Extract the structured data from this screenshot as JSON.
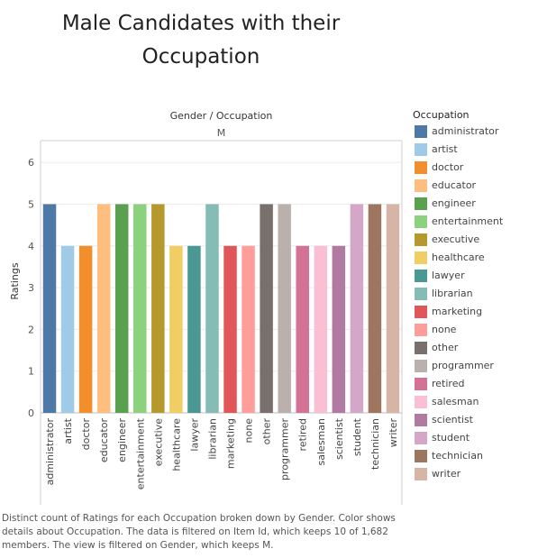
{
  "title_line1": "Male Candidates with their",
  "title_line2": "Occupation",
  "caption": "Distinct count of Ratings for each Occupation broken down by Gender.  Color shows details about Occupation. The data is filtered on Item Id, which keeps 10 of 1,682 members. The view is filtered on Gender, which keeps M.",
  "legend_title": "Occupation",
  "chart_data": {
    "type": "bar",
    "header": "Gender / Occupation",
    "panel": "M",
    "ylabel": "Ratings",
    "ylim": [
      0,
      6.5
    ],
    "yticks": [
      0,
      1,
      2,
      3,
      4,
      5,
      6
    ],
    "categories": [
      "administrator",
      "artist",
      "doctor",
      "educator",
      "engineer",
      "entertainment",
      "executive",
      "healthcare",
      "lawyer",
      "librarian",
      "marketing",
      "none",
      "other",
      "programmer",
      "retired",
      "salesman",
      "scientist",
      "student",
      "technician",
      "writer"
    ],
    "values": [
      5,
      4,
      4,
      5,
      5,
      5,
      5,
      4,
      4,
      5,
      4,
      4,
      5,
      5,
      4,
      4,
      4,
      5,
      5,
      5
    ],
    "colors": [
      "#4e79a7",
      "#a0cbe8",
      "#f28e2b",
      "#ffbe7d",
      "#59a14f",
      "#8cd17d",
      "#b6992d",
      "#f1ce63",
      "#499894",
      "#86bcb6",
      "#e15759",
      "#ff9d9a",
      "#79706e",
      "#bab0ac",
      "#d37295",
      "#fabfd2",
      "#b07aa1",
      "#d4a6c8",
      "#9d7660",
      "#d7b5a6"
    ]
  }
}
